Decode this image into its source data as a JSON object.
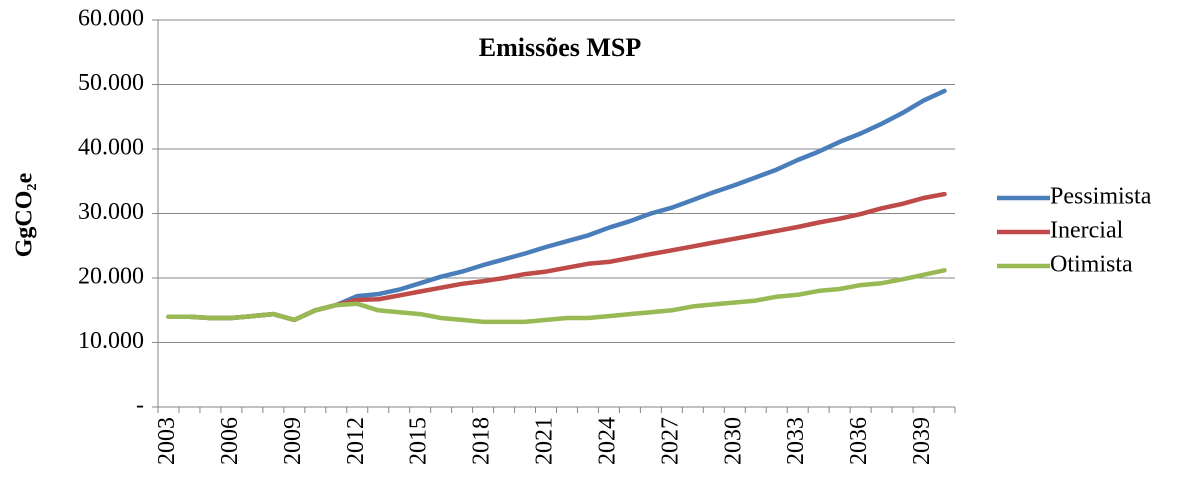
{
  "chart_data": {
    "type": "line",
    "title": "Emissões MSP",
    "y_label": "GgCO₂e",
    "categories": [
      "2003",
      null,
      null,
      "2006",
      null,
      null,
      "2009",
      null,
      null,
      "2012",
      null,
      null,
      "2015",
      null,
      null,
      "2018",
      null,
      null,
      "2021",
      null,
      null,
      "2024",
      null,
      null,
      "2027",
      null,
      null,
      "2030",
      null,
      null,
      "2033",
      null,
      null,
      "2036",
      null,
      null,
      "2039",
      null
    ],
    "series": [
      {
        "name": "Pessimista",
        "color": "#4a7ebb",
        "values": [
          14000,
          14000,
          13800,
          13800,
          14100,
          14400,
          13500,
          15000,
          15800,
          17200,
          17500,
          18200,
          19200,
          20200,
          21000,
          22000,
          22900,
          23800,
          24800,
          25700,
          26600,
          27800,
          28800,
          30000,
          30900,
          32100,
          33300,
          34400,
          35600,
          36800,
          38300,
          39600,
          41100,
          42400,
          43900,
          45600,
          47500,
          49000
        ]
      },
      {
        "name": "Inercial",
        "color": "#be4b48",
        "values": [
          14000,
          14000,
          13800,
          13800,
          14100,
          14400,
          13500,
          15000,
          15800,
          16600,
          16700,
          17300,
          17900,
          18500,
          19100,
          19500,
          20000,
          20600,
          21000,
          21600,
          22200,
          22500,
          23100,
          23700,
          24300,
          24900,
          25500,
          26100,
          26700,
          27300,
          27900,
          28600,
          29200,
          29900,
          30800,
          31500,
          32400,
          33000
        ]
      },
      {
        "name": "Otimista",
        "color": "#98b954",
        "values": [
          14000,
          14000,
          13800,
          13800,
          14100,
          14400,
          13500,
          15000,
          15800,
          16000,
          15000,
          14700,
          14400,
          13800,
          13500,
          13200,
          13200,
          13200,
          13500,
          13800,
          13800,
          14100,
          14400,
          14700,
          15000,
          15600,
          15900,
          16200,
          16500,
          17100,
          17400,
          18000,
          18300,
          18900,
          19200,
          19800,
          20500,
          21200
        ]
      }
    ],
    "ylim": [
      0,
      60000
    ],
    "yticks": [
      {
        "value": 0,
        "label": "-"
      },
      {
        "value": 10000,
        "label": "10.000"
      },
      {
        "value": 20000,
        "label": "20.000"
      },
      {
        "value": 30000,
        "label": "30.000"
      },
      {
        "value": 40000,
        "label": "40.000"
      },
      {
        "value": 50000,
        "label": "50.000"
      },
      {
        "value": 60000,
        "label": "60.000"
      }
    ],
    "grid": true,
    "legend": "right"
  }
}
